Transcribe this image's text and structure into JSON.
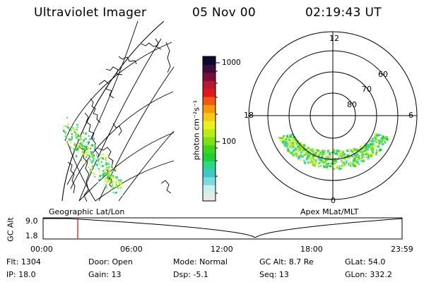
{
  "header": {
    "instrument": "Ultraviolet Imager",
    "date": "05 Nov 00",
    "time": "02:19:43 UT"
  },
  "geo_panel": {
    "label": "Geographic Lat/Lon"
  },
  "polar_panel": {
    "label": "Apex MLat/MLT",
    "mlt_labels": [
      "12",
      "18",
      "6",
      "0"
    ],
    "lat_labels": [
      "60",
      "70",
      "80"
    ]
  },
  "colorbar": {
    "tick_labels": [
      "1000",
      "100"
    ],
    "unit_label": "photon cm⁻²s⁻¹",
    "colors": [
      "#e8e8e8",
      "#c8f0f0",
      "#7fdcdc",
      "#3ec8c8",
      "#2cd78a",
      "#1fcf3a",
      "#3fd41e",
      "#7ee01c",
      "#b8ec18",
      "#e8f020",
      "#f6c818",
      "#f89810",
      "#f05a10",
      "#e01818",
      "#b8182e",
      "#7a0e3a",
      "#3c0c3c",
      "#10082a"
    ]
  },
  "timeline": {
    "y_axis_label": "GC Alt",
    "y_ticks": [
      "9.0",
      "1.8"
    ],
    "x_ticks": [
      "00:00",
      "06:00",
      "12:00",
      "18:00",
      "23:59"
    ],
    "marker_time": "02:19:43"
  },
  "footer": {
    "flt": "Flt: 1304",
    "ip": "IP: 18.0",
    "door": "Door: Open",
    "gain": "Gain: 13",
    "mode": "Mode: Normal",
    "dsp": "Dsp:   -5.1",
    "gcalt": "GC Alt: 8.7 Re",
    "seq": "Seq: 13",
    "glat": "GLat:  54.0",
    "glon": "GLon: 332.2"
  }
}
